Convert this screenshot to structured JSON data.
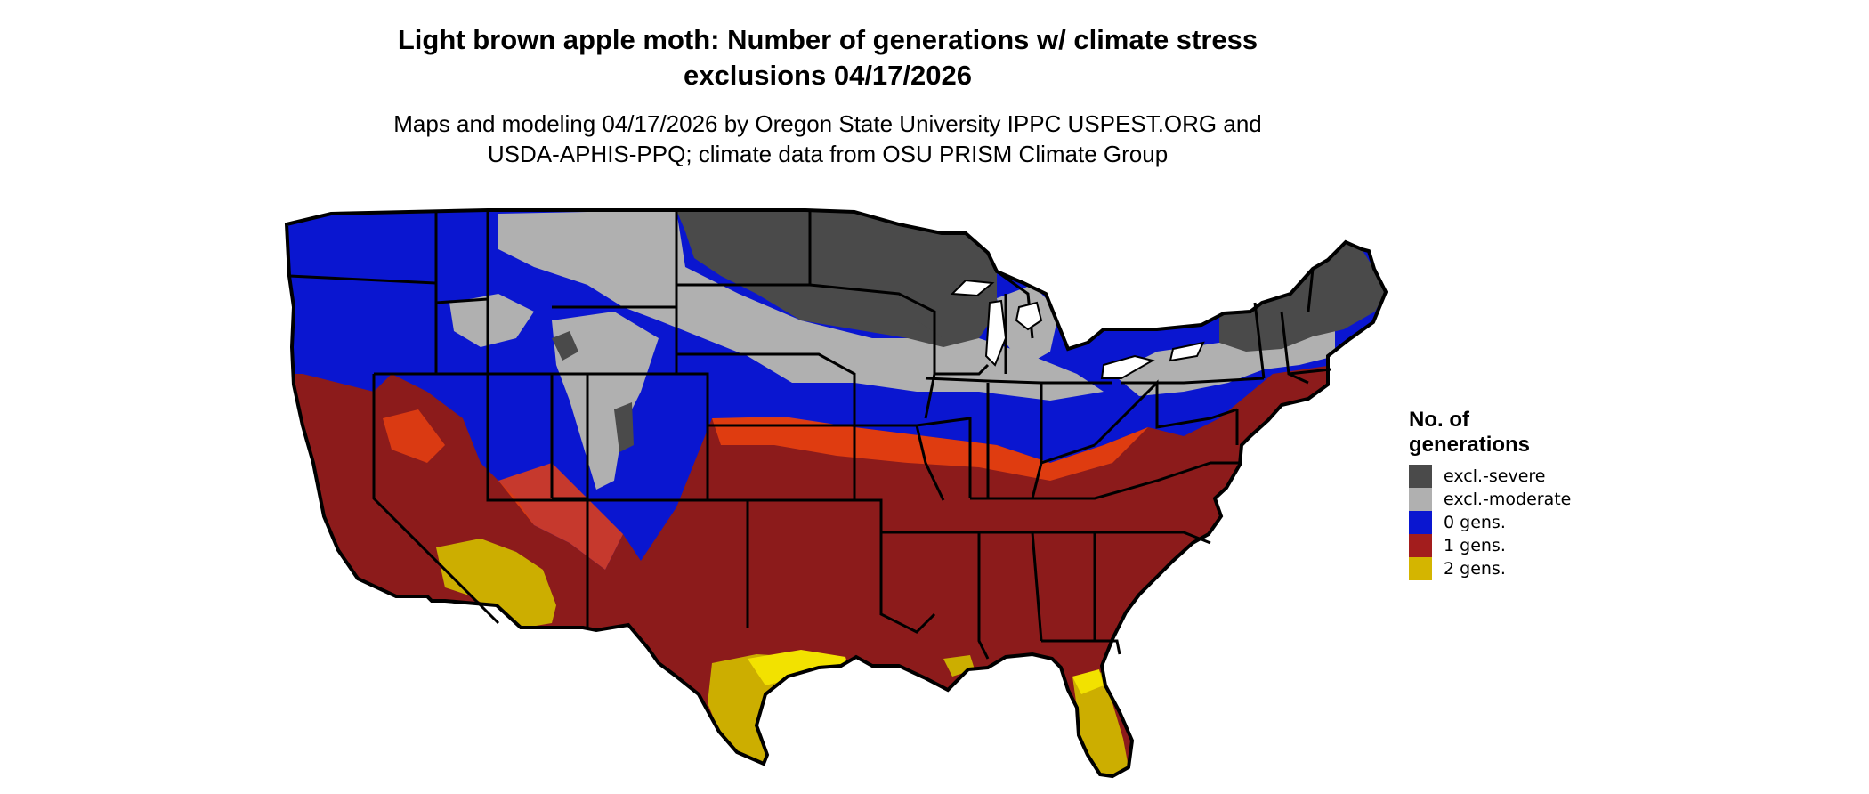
{
  "title_line1": "Light brown apple moth: Number of generations w/ climate stress",
  "title_line2": "exclusions 04/17/2026",
  "subtitle_line1": "Maps and modeling 04/17/2026 by Oregon State University IPPC USPEST.ORG and",
  "subtitle_line2": "USDA-APHIS-PPQ; climate data from OSU PRISM Climate Group",
  "legend": {
    "title_line1": "No. of",
    "title_line2": "generations",
    "items": [
      {
        "label": "excl.-severe",
        "color": "#4a4a4a"
      },
      {
        "label": "excl.-moderate",
        "color": "#b0b0b0"
      },
      {
        "label": "0 gens.",
        "color": "#0a16d0"
      },
      {
        "label": "1 gens.",
        "color": "#a31d1d"
      },
      {
        "label": "2 gens.",
        "color": "#d4b500"
      }
    ]
  },
  "colors": {
    "excl_severe": "#4a4a4a",
    "excl_moderate": "#b0b0b0",
    "gens_0": "#0a16d0",
    "gens_1": "#8c1b1b",
    "gens_1_transition": "#e84010",
    "gens_2": "#ccae00",
    "gens_2_bright": "#f2e200",
    "borders": "#000000"
  }
}
